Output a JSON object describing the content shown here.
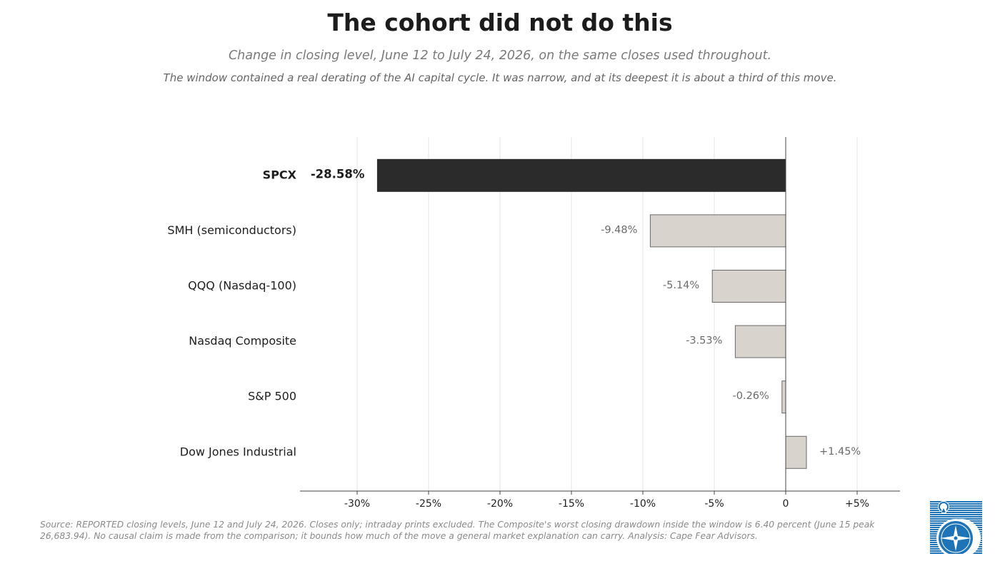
{
  "title": "The cohort did not do this",
  "subtitle": "Change in closing level, June 12 to July 24, 2026, on the same closes used throughout.",
  "note": "The window contained a real derating of the AI capital cycle. It was narrow, and at its deepest it is about a third of this move.",
  "source": "Source: REPORTED closing levels, June 12 and July 24, 2026. Closes only; intraday prints excluded. The Composite's worst closing drawdown inside the window is 6.40 percent (June 15 peak 26,683.94). No causal claim is made from the comparison; it bounds how much of the move a general market explanation can carry. Analysis: Cape Fear Advisors.",
  "colors": {
    "highlight": "#2b2b2b",
    "bar": "#d8d4cd",
    "bar_edge": "#6a6a6a",
    "grid": "#e3e3e3",
    "logo": "#1f74b8"
  },
  "logo_icon": "compass-rose-icon",
  "chart_data": {
    "type": "bar",
    "orientation": "horizontal",
    "categories": [
      "SPCX",
      "SMH (semiconductors)",
      "QQQ (Nasdaq-100)",
      "Nasdaq Composite",
      "S&P 500",
      "Dow Jones Industrial"
    ],
    "values": [
      -28.58,
      -9.48,
      -5.14,
      -3.53,
      -0.26,
      1.45
    ],
    "data_labels": [
      "-28.58%",
      "-9.48%",
      "-5.14%",
      "-3.53%",
      "-0.26%",
      "+1.45%"
    ],
    "highlight_index": 0,
    "xlim": [
      -34,
      8
    ],
    "xticks": [
      -30,
      -25,
      -20,
      -15,
      -10,
      -5,
      0,
      5
    ],
    "xtick_labels": [
      "-30%",
      "-25%",
      "-20%",
      "-15%",
      "-10%",
      "-5%",
      "0",
      "+5%"
    ],
    "grid": "vertical",
    "xlabel": "",
    "ylabel": ""
  }
}
